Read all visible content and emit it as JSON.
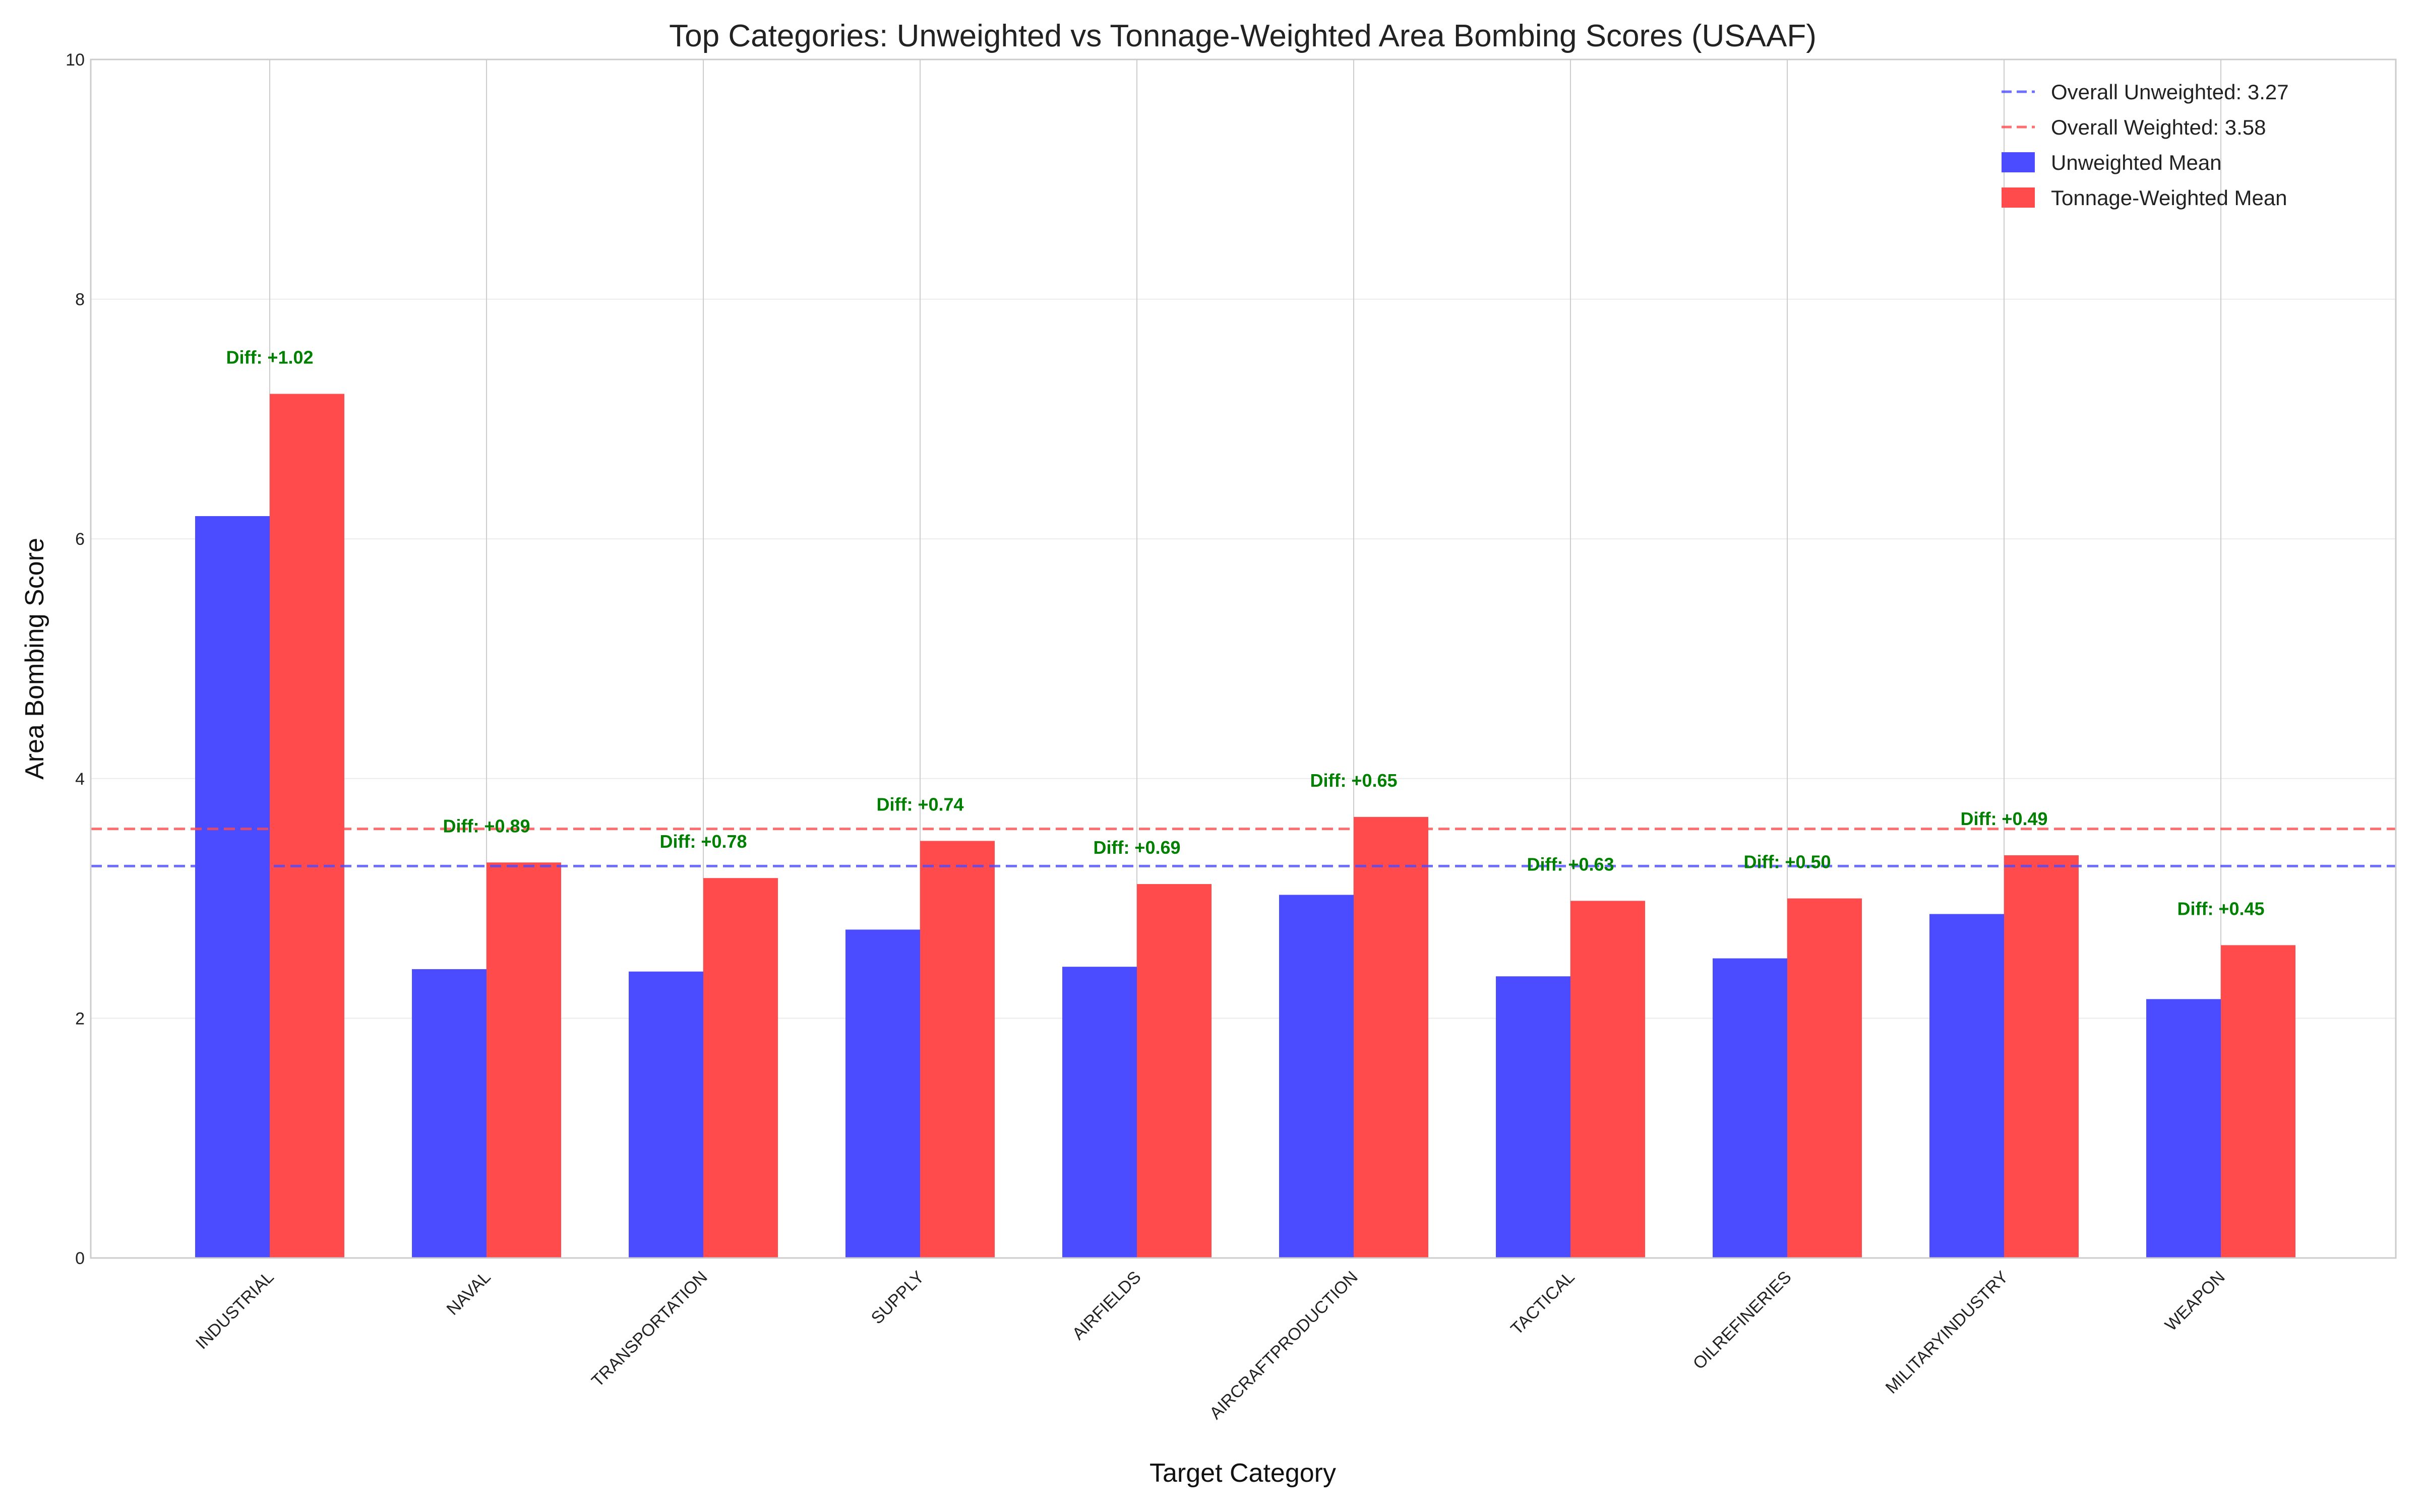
{
  "chart_data": {
    "type": "bar",
    "title": "Top Categories: Unweighted vs Tonnage-Weighted Area Bombing Scores (USAAF)",
    "xlabel": "Target Category",
    "ylabel": "Area Bombing Score",
    "ylim": [
      0,
      10
    ],
    "yticks": [
      "0",
      "2",
      "4",
      "6",
      "8",
      "10"
    ],
    "grid": true,
    "legend_position": "top-right",
    "categories": [
      "INDUSTRIAL",
      "NAVAL",
      "TRANSPORTATION",
      "SUPPLY",
      "AIRFIELDS",
      "AIRCRAFTPRODUCTION",
      "TACTICAL",
      "OILREFINERIES",
      "MILITARYINDUSTRY",
      "WEAPON"
    ],
    "series": [
      {
        "name": "Unweighted Mean",
        "color": "#4b4bff",
        "values": [
          6.19,
          2.41,
          2.39,
          2.74,
          2.43,
          3.03,
          2.35,
          2.5,
          2.87,
          2.16
        ]
      },
      {
        "name": "Tonnage-Weighted Mean",
        "color": "#ff4b4b",
        "values": [
          7.21,
          3.3,
          3.17,
          3.48,
          3.12,
          3.68,
          2.98,
          3.0,
          3.36,
          2.61
        ]
      }
    ],
    "diff_labels": [
      "Diff: +1.02",
      "Diff: +0.89",
      "Diff: +0.78",
      "Diff: +0.74",
      "Diff: +0.69",
      "Diff: +0.65",
      "Diff: +0.63",
      "Diff: +0.50",
      "Diff: +0.49",
      "Diff: +0.45"
    ],
    "diff_color": "#008000",
    "reference_lines": [
      {
        "name": "Overall Unweighted: 3.27",
        "value": 3.27,
        "color": "#4b4bff",
        "style": "dashed"
      },
      {
        "name": "Overall Weighted: 3.58",
        "value": 3.58,
        "color": "#ff4b4b",
        "style": "dashed"
      }
    ]
  }
}
